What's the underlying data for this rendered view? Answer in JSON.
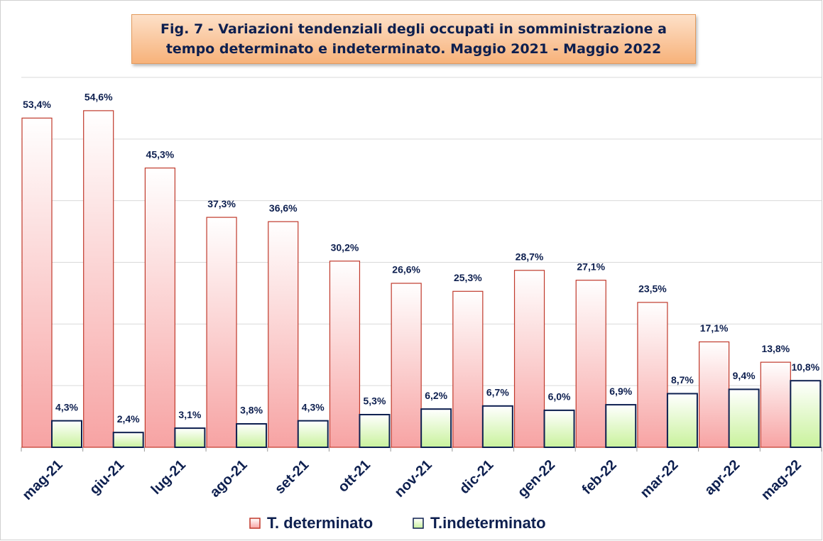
{
  "chart_data": {
    "type": "bar",
    "title": "Fig. 7 - Variazioni tendenziali degli occupati in somministrazione a tempo determinato e indeterminato. Maggio 2021 - Maggio 2022",
    "categories": [
      "mag-21",
      "giu-21",
      "lug-21",
      "ago-21",
      "set-21",
      "ott-21",
      "nov-21",
      "dic-21",
      "gen-22",
      "feb-22",
      "mar-22",
      "apr-22",
      "mag-22"
    ],
    "series": [
      {
        "name": "T. determinato",
        "color": "#f7a3a3",
        "edgecolor": "#c0392b",
        "values": [
          53.4,
          54.6,
          45.3,
          37.3,
          36.6,
          30.2,
          26.6,
          25.3,
          28.7,
          27.1,
          23.5,
          17.1,
          13.8
        ],
        "value_labels": [
          "53,4%",
          "54,6%",
          "45,3%",
          "37,3%",
          "36,6%",
          "30,2%",
          "26,6%",
          "25,3%",
          "28,7%",
          "27,1%",
          "23,5%",
          "17,1%",
          "13,8%"
        ]
      },
      {
        "name": "T.indeterminato",
        "color": "#c9f29c",
        "edgecolor": "#0d1f4f",
        "values": [
          4.3,
          2.4,
          3.1,
          3.8,
          4.3,
          5.3,
          6.2,
          6.7,
          6.0,
          6.9,
          8.7,
          9.4,
          10.8
        ],
        "value_labels": [
          "4,3%",
          "2,4%",
          "3,1%",
          "3,8%",
          "4,3%",
          "5,3%",
          "6,2%",
          "6,7%",
          "6,0%",
          "6,9%",
          "8,7%",
          "9,4%",
          "10,8%"
        ]
      }
    ],
    "ylim": [
      0,
      60
    ],
    "yticks": [
      0,
      10,
      20,
      30,
      40,
      50,
      60
    ],
    "grid": true,
    "legend": "bottom"
  }
}
